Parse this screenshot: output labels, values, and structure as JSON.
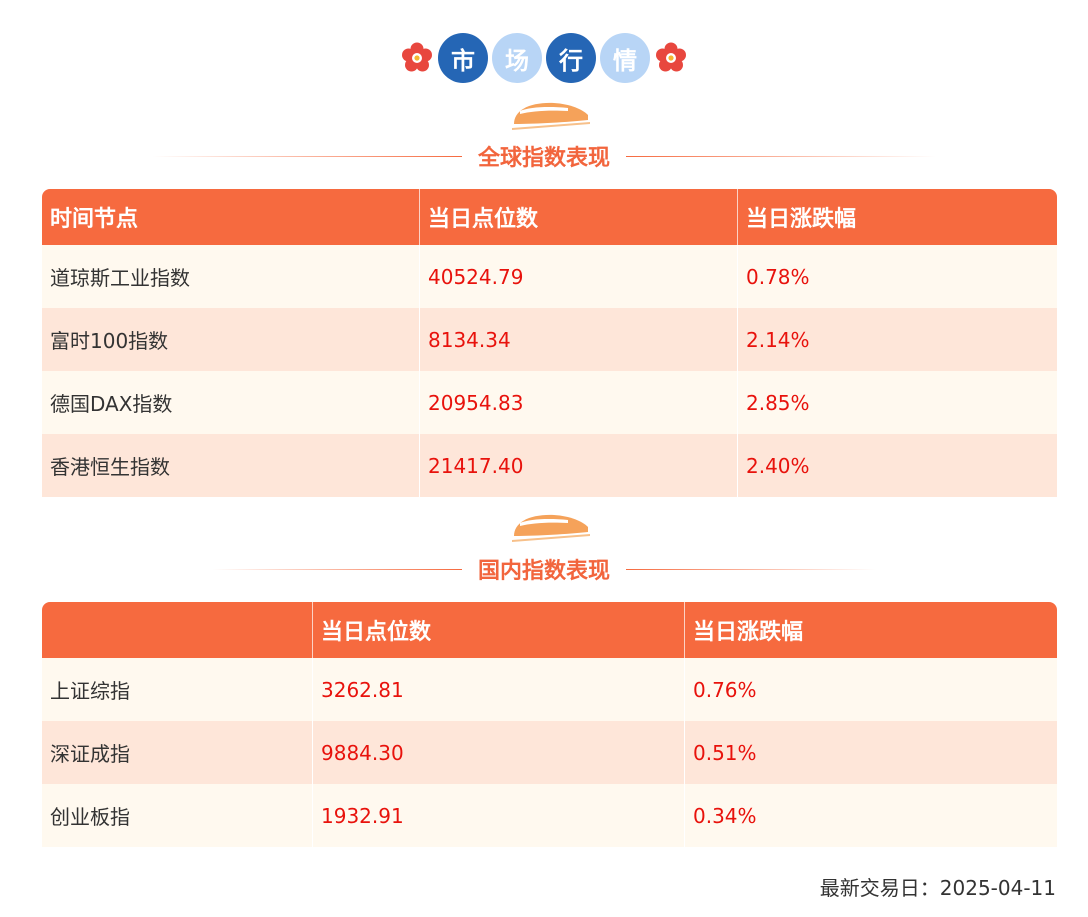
{
  "header": {
    "chars": [
      "市",
      "场",
      "行",
      "情"
    ]
  },
  "global_section": {
    "title": "全球指数表现",
    "columns": [
      "时间节点",
      "当日点位数",
      "当日涨跌幅"
    ],
    "rows": [
      {
        "name": "道琼斯工业指数",
        "value": "40524.79",
        "change": "0.78%"
      },
      {
        "name": "富时100指数",
        "value": "8134.34",
        "change": "2.14%"
      },
      {
        "name": "德国DAX指数",
        "value": "20954.83",
        "change": "2.85%"
      },
      {
        "name": "香港恒生指数",
        "value": "21417.40",
        "change": "2.40%"
      }
    ]
  },
  "domestic_section": {
    "title": "国内指数表现",
    "columns": [
      "",
      "当日点位数",
      "当日涨跌幅"
    ],
    "rows": [
      {
        "name": "上证综指",
        "value": "3262.81",
        "change": "0.76%"
      },
      {
        "name": "深证成指",
        "value": "9884.30",
        "change": "0.51%"
      },
      {
        "name": "创业板指",
        "value": "1932.91",
        "change": "0.34%"
      }
    ]
  },
  "footer": {
    "last_trade_date": "最新交易日：2025-04-11"
  },
  "colors": {
    "accent": "#f66a3f",
    "title_orange": "#f2653d",
    "header_dark_blue": "#2566b5",
    "header_light_blue": "#b8d5f6",
    "row_light": "#fff9ef",
    "row_peach": "#fee6d9",
    "value_red": "#e8120c"
  },
  "icons": [
    "flower-icon",
    "train-icon"
  ]
}
